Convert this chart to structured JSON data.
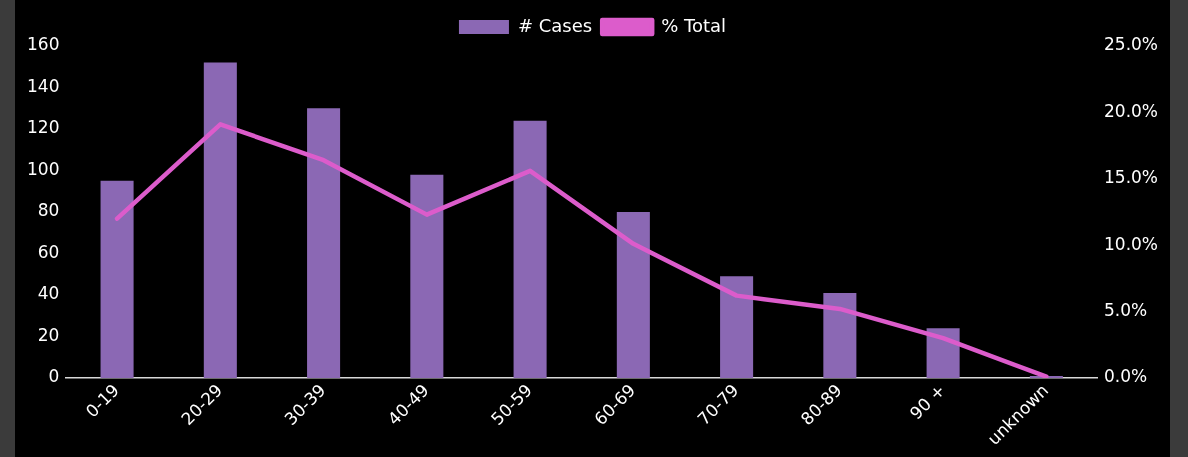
{
  "chart_data": {
    "type": "bar",
    "categories": [
      "0-19",
      "20-29",
      "30-39",
      "40-49",
      "50-59",
      "60-69",
      "70-79",
      "80-89",
      "90 +",
      "unknown"
    ],
    "series": [
      {
        "name": "# Cases",
        "color": "#8b68b4",
        "values": [
          95,
          152,
          130,
          98,
          124,
          80,
          49,
          41,
          24,
          1
        ]
      },
      {
        "name": "% Total",
        "type": "line",
        "axis": "y2",
        "color": "#dc5ccb",
        "values": [
          12.0,
          19.1,
          16.4,
          12.3,
          15.6,
          10.1,
          6.2,
          5.2,
          3.0,
          0.1
        ]
      }
    ],
    "ylim": [
      0,
      160
    ],
    "yticks": [
      0,
      20,
      40,
      60,
      80,
      100,
      120,
      140,
      160
    ],
    "y2lim": [
      0,
      25
    ],
    "y2ticks": [
      {
        "value": 0,
        "label": "0.0%"
      },
      {
        "value": 5,
        "label": "5.0%"
      },
      {
        "value": 10,
        "label": "10.0%"
      },
      {
        "value": 15,
        "label": "15.0%"
      },
      {
        "value": 20,
        "label": "20.0%"
      },
      {
        "value": 25,
        "label": "25.0%"
      }
    ],
    "legend": "top",
    "grid": false,
    "marker": "none",
    "line_style": "solid"
  }
}
